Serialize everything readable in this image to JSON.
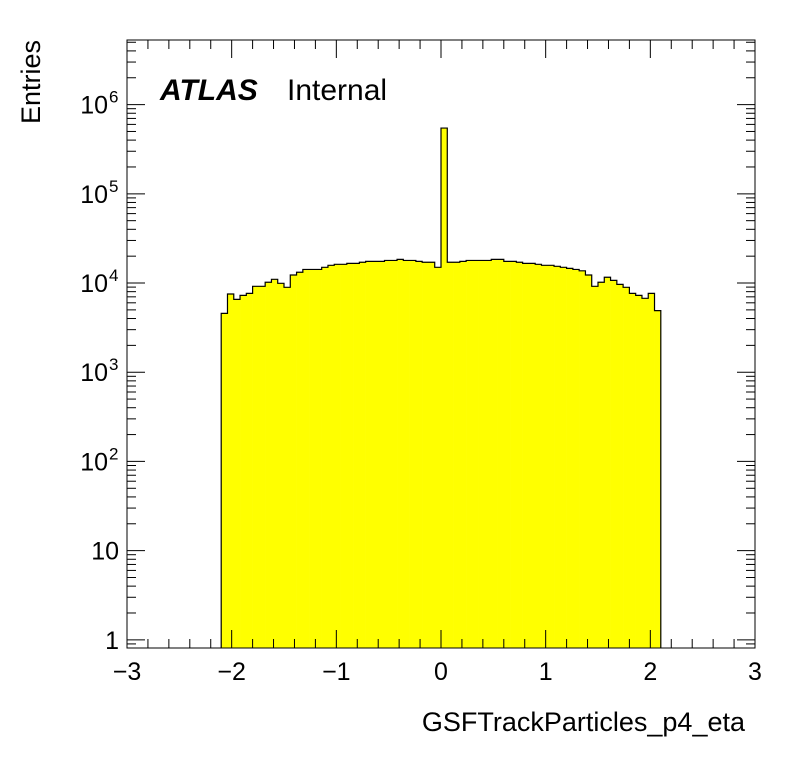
{
  "chart_data": {
    "type": "bar",
    "histogram": true,
    "title": "",
    "xlabel": "GSFTrackParticles_p4_eta",
    "ylabel": "Entries",
    "xlim": [
      -3,
      3
    ],
    "ylim": [
      0.81,
      5300000
    ],
    "yscale": "log",
    "bin_width": 0.06,
    "first_bin_low_edge": -2.1,
    "fill_color": "#ffff00",
    "line_color": "#000000",
    "values": [
      4570,
      7530,
      6560,
      7270,
      7660,
      9180,
      9180,
      10200,
      11000,
      9930,
      8950,
      12300,
      13200,
      14200,
      14200,
      14200,
      15000,
      15800,
      16200,
      16200,
      16600,
      16600,
      17100,
      17500,
      17500,
      17500,
      17900,
      17900,
      18400,
      17900,
      17900,
      17500,
      17100,
      17100,
      15000,
      546000,
      17100,
      17100,
      17500,
      17900,
      17900,
      17900,
      17900,
      18400,
      18400,
      17500,
      17500,
      17100,
      16600,
      16600,
      16200,
      15800,
      15800,
      15400,
      15000,
      14600,
      14200,
      13700,
      12300,
      9180,
      10200,
      11600,
      10700,
      9660,
      8950,
      7660,
      7270,
      6740,
      7660,
      4900
    ],
    "x_ticks": [
      {
        "v": -3,
        "label": "−3"
      },
      {
        "v": -2,
        "label": "−2"
      },
      {
        "v": -1,
        "label": "−1"
      },
      {
        "v": 0,
        "label": "0"
      },
      {
        "v": 1,
        "label": "1"
      },
      {
        "v": 2,
        "label": "2"
      },
      {
        "v": 3,
        "label": "3"
      }
    ],
    "y_ticks": [
      {
        "exp": 0,
        "label": "1",
        "sup": ""
      },
      {
        "exp": 1,
        "label": "10",
        "sup": ""
      },
      {
        "exp": 2,
        "label": "10",
        "sup": "2"
      },
      {
        "exp": 3,
        "label": "10",
        "sup": "3"
      },
      {
        "exp": 4,
        "label": "10",
        "sup": "4"
      },
      {
        "exp": 5,
        "label": "10",
        "sup": "5"
      },
      {
        "exp": 6,
        "label": "10",
        "sup": "6"
      }
    ],
    "annotations": {
      "atlas": "ATLAS",
      "status": "Internal"
    }
  }
}
